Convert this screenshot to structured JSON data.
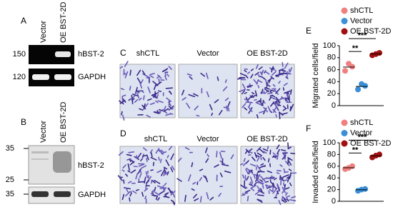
{
  "panels": {
    "A": {
      "label": "A",
      "lanes": [
        "Vector",
        "OE BST-2D"
      ],
      "blots": [
        {
          "marker": "150",
          "target": "hBST-2"
        },
        {
          "marker": "120",
          "target": "GAPDH"
        }
      ]
    },
    "B": {
      "label": "B",
      "lanes": [
        "Vector",
        "OE BST-2D"
      ],
      "markers": [
        "35",
        "25"
      ],
      "target": "hBST-2",
      "loading": {
        "marker": "35",
        "target": "GAPDH"
      }
    },
    "C": {
      "label": "C",
      "conditions": [
        "shCTL",
        "Vector",
        "OE BST-2D"
      ]
    },
    "D": {
      "label": "D",
      "conditions": [
        "shCTL",
        "Vector",
        "OE BST-2D"
      ]
    }
  },
  "chart_data": [
    {
      "type": "dot",
      "label": "E",
      "ylabel": "Migrated cells/field",
      "ylim": [
        0,
        100
      ],
      "yticks": [
        0,
        20,
        40,
        60,
        80,
        100
      ],
      "series": [
        {
          "name": "shCTL",
          "color": "#f08080",
          "values": [
            58,
            65,
            70
          ]
        },
        {
          "name": "Vector",
          "color": "#3a8fd8",
          "values": [
            27,
            33,
            36
          ]
        },
        {
          "name": "OE BST-2D",
          "color": "#a01010",
          "values": [
            84,
            88,
            86
          ]
        }
      ],
      "annotations": [
        "**",
        "***"
      ]
    },
    {
      "type": "dot",
      "label": "F",
      "ylabel": "Invaded cells/field",
      "ylim": [
        0,
        100
      ],
      "yticks": [
        0,
        20,
        40,
        60,
        80,
        100
      ],
      "series": [
        {
          "name": "shCTL",
          "color": "#f08080",
          "values": [
            55,
            60,
            57
          ]
        },
        {
          "name": "Vector",
          "color": "#3a8fd8",
          "values": [
            18,
            21,
            20
          ]
        },
        {
          "name": "OE BST-2D",
          "color": "#a01010",
          "values": [
            75,
            80,
            78
          ]
        }
      ],
      "annotations": [
        "**",
        "***"
      ]
    }
  ]
}
